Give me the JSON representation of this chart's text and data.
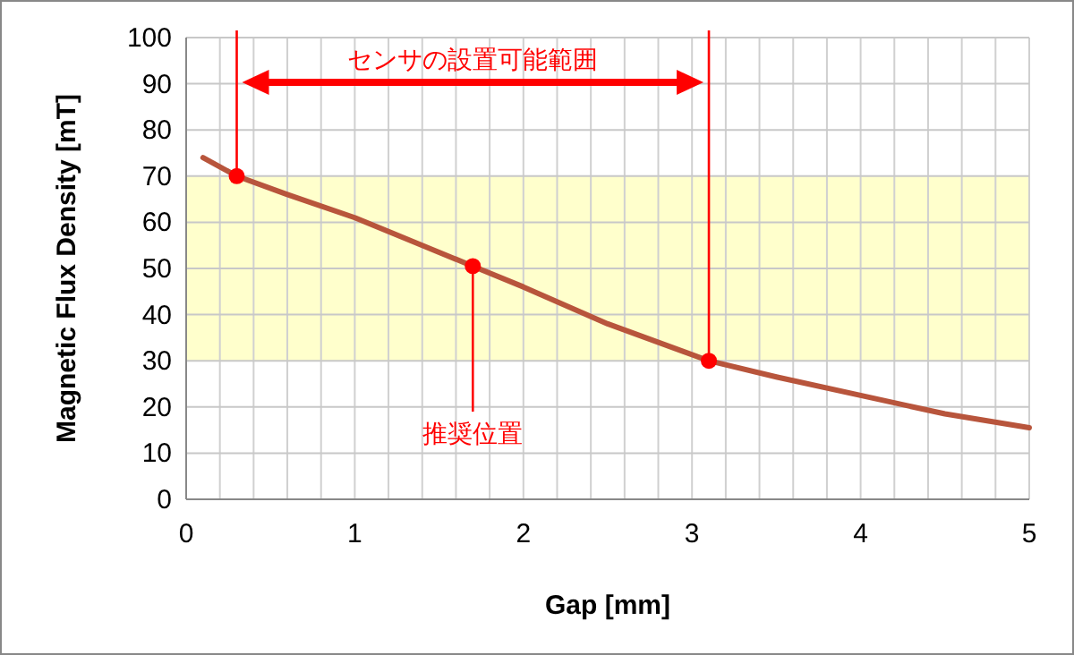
{
  "chart_data": {
    "type": "line",
    "xlabel": "Gap [mm]",
    "ylabel": "Magnetic Flux Density [mT]",
    "xlim": [
      0,
      5
    ],
    "ylim": [
      0,
      100
    ],
    "xticks": [
      0,
      {
        "value": 0.2,
        "label": null
      },
      {
        "value": 0.4,
        "label": null
      },
      {
        "value": 0.6,
        "label": null
      },
      {
        "value": 0.8,
        "label": null
      },
      1,
      {
        "value": 1.2,
        "label": null
      },
      {
        "value": 1.4,
        "label": null
      },
      {
        "value": 1.6,
        "label": null
      },
      {
        "value": 1.8,
        "label": null
      },
      2,
      {
        "value": 2.2,
        "label": null
      },
      {
        "value": 2.4,
        "label": null
      },
      {
        "value": 2.6,
        "label": null
      },
      {
        "value": 2.8,
        "label": null
      },
      3,
      {
        "value": 3.2,
        "label": null
      },
      {
        "value": 3.4,
        "label": null
      },
      {
        "value": 3.6,
        "label": null
      },
      {
        "value": 3.8,
        "label": null
      },
      4,
      {
        "value": 4.2,
        "label": null
      },
      {
        "value": 4.4,
        "label": null
      },
      {
        "value": 4.6,
        "label": null
      },
      {
        "value": 4.8,
        "label": null
      },
      5
    ],
    "yticks": [
      0,
      10,
      20,
      30,
      40,
      50,
      60,
      70,
      80,
      90,
      100
    ],
    "grid": true,
    "series": [
      {
        "color": "#b8553c",
        "x": [
          0.1,
          0.3,
          0.6,
          1,
          1.4,
          1.7,
          2,
          2.5,
          3.1,
          3.5,
          4,
          4.5,
          5
        ],
        "values": [
          74,
          70,
          66,
          61,
          55,
          50.5,
          46,
          38,
          30,
          26.5,
          22.5,
          18.5,
          15.5
        ]
      },
      {
        "type": "scatter",
        "color": "#ff0000",
        "marker": "circle",
        "x": [
          0.3,
          1.7,
          3.1
        ],
        "values": [
          70,
          50.5,
          30
        ]
      }
    ],
    "bands": [
      {
        "axis": "y",
        "from": 30,
        "to": 70,
        "color": "#ffffcc"
      }
    ],
    "ref_lines": [
      {
        "axis": "x",
        "value": 0.3,
        "color": "#ff0000"
      },
      {
        "axis": "x",
        "value": 3.1,
        "color": "#ff0000"
      }
    ],
    "annotations": [
      "センサの設置可能範囲",
      {
        "text": "推奨位置",
        "x": 1.7,
        "y": 50.5
      }
    ]
  }
}
